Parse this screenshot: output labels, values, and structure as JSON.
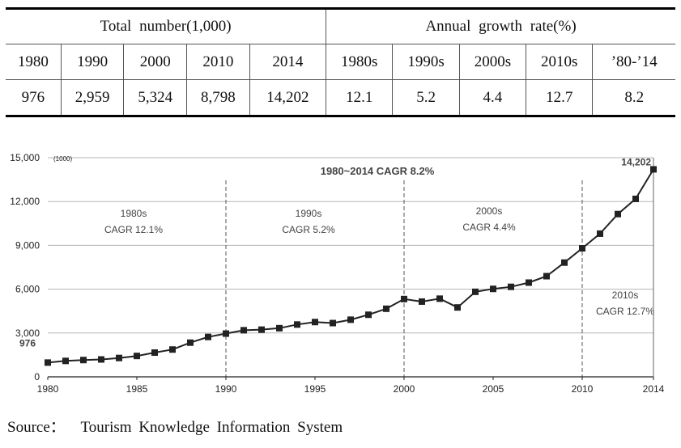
{
  "table": {
    "group_total": "Total number(1,000)",
    "group_growth": "Annual growth rate(%)",
    "year_headers": [
      "1980",
      "1990",
      "2000",
      "2010",
      "2014"
    ],
    "period_headers": [
      "1980s",
      "1990s",
      "2000s",
      "2010s",
      "’80-’14"
    ],
    "totals": [
      "976",
      "2,959",
      "5,324",
      "8,798",
      "14,202"
    ],
    "growth": [
      "12.1",
      "5.2",
      "4.4",
      "12.7",
      "8.2"
    ]
  },
  "chart_data": {
    "type": "line",
    "unit_label": "(1000)",
    "title": "1980~2014 CAGR 8.2%",
    "ylim": [
      0,
      15000
    ],
    "yticks": [
      "0",
      "3,000",
      "6,000",
      "9,000",
      "12,000",
      "15,000"
    ],
    "xlim": [
      1980,
      2014
    ],
    "xticks": [
      "1980",
      "1985",
      "1990",
      "1995",
      "2000",
      "2005",
      "2010",
      "2014"
    ],
    "grid": true,
    "series": [
      {
        "x": [
          1980,
          1981,
          1982,
          1983,
          1984,
          1985,
          1986,
          1987,
          1988,
          1989,
          1990,
          1991,
          1992,
          1993,
          1994,
          1995,
          1996,
          1997,
          1998,
          1999,
          2000,
          2001,
          2002,
          2003,
          2004,
          2005,
          2006,
          2007,
          2008,
          2009,
          2010,
          2011,
          2012,
          2013,
          2014
        ],
        "values": [
          976,
          1090,
          1150,
          1190,
          1290,
          1430,
          1660,
          1870,
          2340,
          2730,
          2959,
          3190,
          3230,
          3330,
          3580,
          3750,
          3680,
          3910,
          4250,
          4660,
          5324,
          5150,
          5350,
          4750,
          5820,
          6020,
          6160,
          6450,
          6890,
          7820,
          8798,
          9800,
          11140,
          12180,
          14202
        ]
      }
    ],
    "point_labels": [
      {
        "text": "976",
        "x": 1980,
        "y": 976
      },
      {
        "text": "14,202",
        "x": 2014,
        "y": 14202
      }
    ],
    "dividers": [
      1990,
      2000,
      2010
    ],
    "annotations": [
      {
        "line1": "1980s",
        "line2": "CAGR 12.1%"
      },
      {
        "line1": "1990s",
        "line2": "CAGR 5.2%"
      },
      {
        "line1": "2000s",
        "line2": "CAGR 4.4%"
      },
      {
        "line1": "2010s",
        "line2": "CAGR 12.7%"
      }
    ]
  },
  "source": {
    "label": "Source：",
    "text": "Tourism Knowledge Information System"
  }
}
